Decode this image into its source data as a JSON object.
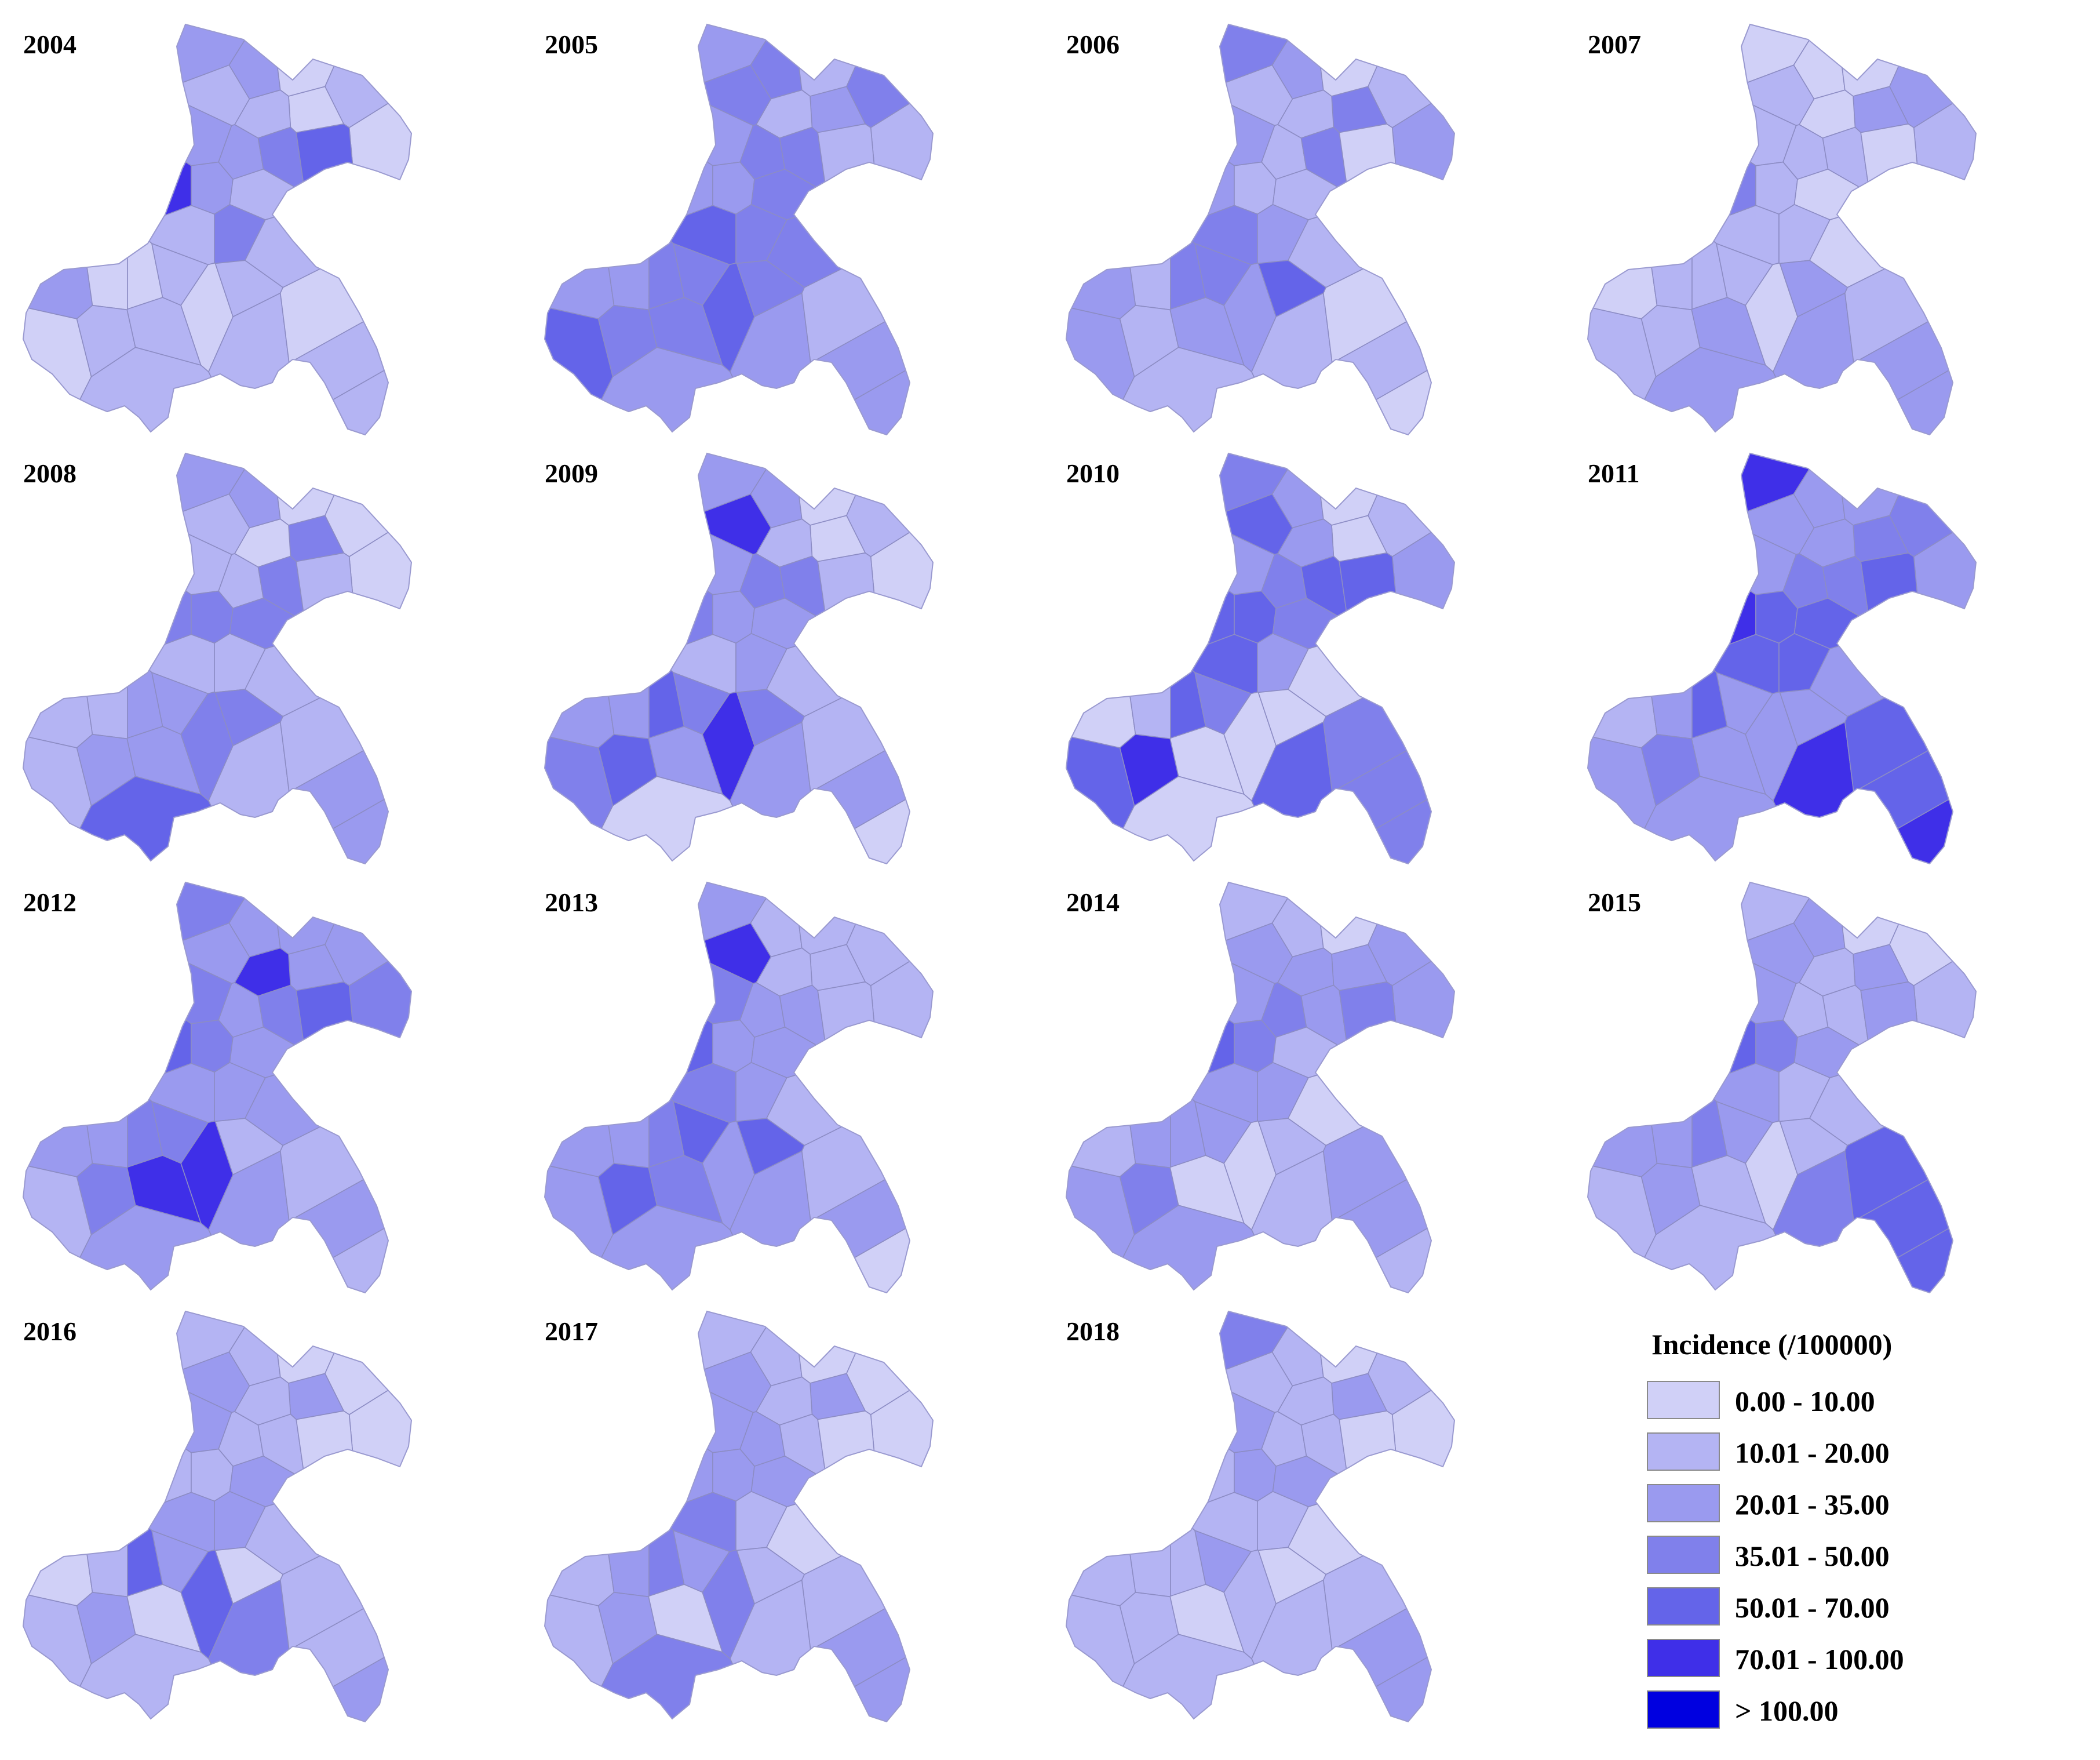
{
  "map": {
    "panels": [
      {
        "year": "2004",
        "classes": [
          3,
          3,
          1,
          2,
          1,
          1,
          2,
          2,
          3,
          3,
          4,
          5,
          6,
          3,
          2,
          2,
          4,
          2,
          3,
          1,
          1,
          2,
          2,
          1,
          2,
          1,
          2,
          2,
          1,
          2,
          2,
          2
        ]
      },
      {
        "year": "2005",
        "classes": [
          3,
          4,
          2,
          4,
          2,
          3,
          2,
          4,
          3,
          4,
          4,
          2,
          3,
          3,
          4,
          5,
          4,
          4,
          3,
          3,
          4,
          4,
          4,
          5,
          4,
          5,
          4,
          3,
          2,
          3,
          3,
          3
        ]
      },
      {
        "year": "2006",
        "classes": [
          4,
          3,
          1,
          2,
          3,
          4,
          2,
          2,
          3,
          2,
          4,
          1,
          3,
          2,
          2,
          4,
          3,
          2,
          3,
          2,
          4,
          4,
          2,
          3,
          3,
          3,
          5,
          2,
          1,
          2,
          1,
          2
        ]
      },
      {
        "year": "2007",
        "classes": [
          1,
          1,
          1,
          3,
          2,
          3,
          1,
          2,
          2,
          2,
          2,
          1,
          4,
          2,
          1,
          2,
          2,
          1,
          1,
          2,
          2,
          2,
          2,
          2,
          3,
          1,
          3,
          3,
          2,
          3,
          3,
          3
        ]
      },
      {
        "year": "2008",
        "classes": [
          3,
          3,
          1,
          1,
          1,
          4,
          1,
          2,
          2,
          2,
          4,
          2,
          4,
          4,
          4,
          2,
          2,
          2,
          2,
          2,
          3,
          3,
          3,
          2,
          3,
          4,
          4,
          2,
          2,
          3,
          3,
          5
        ]
      },
      {
        "year": "2009",
        "classes": [
          3,
          3,
          1,
          2,
          1,
          1,
          2,
          6,
          3,
          4,
          4,
          2,
          4,
          3,
          3,
          2,
          3,
          2,
          3,
          3,
          5,
          4,
          5,
          4,
          3,
          6,
          4,
          3,
          2,
          3,
          1,
          1
        ]
      },
      {
        "year": "2010",
        "classes": [
          4,
          3,
          1,
          2,
          3,
          1,
          3,
          5,
          3,
          4,
          5,
          5,
          5,
          5,
          4,
          5,
          3,
          1,
          1,
          2,
          5,
          4,
          6,
          5,
          1,
          1,
          1,
          5,
          4,
          4,
          4,
          1
        ]
      },
      {
        "year": "2011",
        "classes": [
          6,
          3,
          3,
          4,
          3,
          4,
          3,
          3,
          3,
          4,
          4,
          5,
          6,
          5,
          5,
          5,
          5,
          3,
          2,
          3,
          5,
          3,
          4,
          3,
          3,
          3,
          3,
          6,
          5,
          5,
          6,
          3
        ]
      },
      {
        "year": "2012",
        "classes": [
          4,
          3,
          3,
          3,
          4,
          3,
          6,
          3,
          4,
          3,
          4,
          5,
          5,
          4,
          3,
          3,
          3,
          3,
          3,
          3,
          4,
          4,
          4,
          2,
          6,
          6,
          2,
          3,
          2,
          3,
          2,
          3
        ]
      },
      {
        "year": "2013",
        "classes": [
          3,
          2,
          2,
          2,
          2,
          2,
          2,
          6,
          4,
          3,
          3,
          2,
          5,
          3,
          3,
          4,
          3,
          2,
          3,
          3,
          4,
          5,
          5,
          3,
          4,
          3,
          5,
          3,
          2,
          3,
          1,
          3
        ]
      },
      {
        "year": "2014",
        "classes": [
          2,
          2,
          1,
          3,
          3,
          3,
          3,
          3,
          3,
          4,
          3,
          4,
          5,
          4,
          2,
          3,
          3,
          1,
          2,
          3,
          3,
          3,
          4,
          3,
          1,
          1,
          2,
          2,
          3,
          3,
          2,
          3
        ]
      },
      {
        "year": "2015",
        "classes": [
          2,
          3,
          1,
          1,
          2,
          3,
          2,
          3,
          3,
          2,
          2,
          3,
          5,
          4,
          3,
          3,
          2,
          2,
          3,
          3,
          4,
          3,
          3,
          2,
          2,
          1,
          2,
          4,
          5,
          5,
          5,
          2
        ]
      },
      {
        "year": "2016",
        "classes": [
          2,
          2,
          1,
          1,
          1,
          3,
          2,
          3,
          3,
          2,
          2,
          1,
          2,
          2,
          3,
          3,
          3,
          2,
          1,
          2,
          5,
          3,
          3,
          2,
          1,
          5,
          1,
          4,
          2,
          2,
          3,
          2
        ]
      },
      {
        "year": "2017",
        "classes": [
          2,
          2,
          1,
          1,
          1,
          3,
          2,
          3,
          3,
          3,
          2,
          1,
          3,
          3,
          3,
          4,
          2,
          1,
          2,
          3,
          4,
          3,
          3,
          2,
          1,
          4,
          2,
          2,
          2,
          3,
          3,
          4
        ]
      },
      {
        "year": "2018",
        "classes": [
          4,
          2,
          1,
          2,
          1,
          3,
          2,
          2,
          3,
          2,
          2,
          1,
          2,
          3,
          3,
          2,
          2,
          1,
          2,
          2,
          2,
          3,
          2,
          2,
          1,
          2,
          1,
          2,
          2,
          3,
          3,
          2
        ]
      }
    ],
    "legend": {
      "title": "Incidence (/100000)",
      "items": [
        {
          "label": "0.00 - 10.00",
          "color": "#d0d0f7"
        },
        {
          "label": "10.01 - 20.00",
          "color": "#b4b4f3"
        },
        {
          "label": "20.01 - 35.00",
          "color": "#9a9aef"
        },
        {
          "label": "35.01 - 50.00",
          "color": "#8080eb"
        },
        {
          "label": "50.01 - 70.00",
          "color": "#6464e9"
        },
        {
          "label": "70.01 - 100.00",
          "color": "#3f2fe8"
        },
        {
          "label": "> 100.00",
          "color": "#0000e0"
        }
      ]
    }
  }
}
